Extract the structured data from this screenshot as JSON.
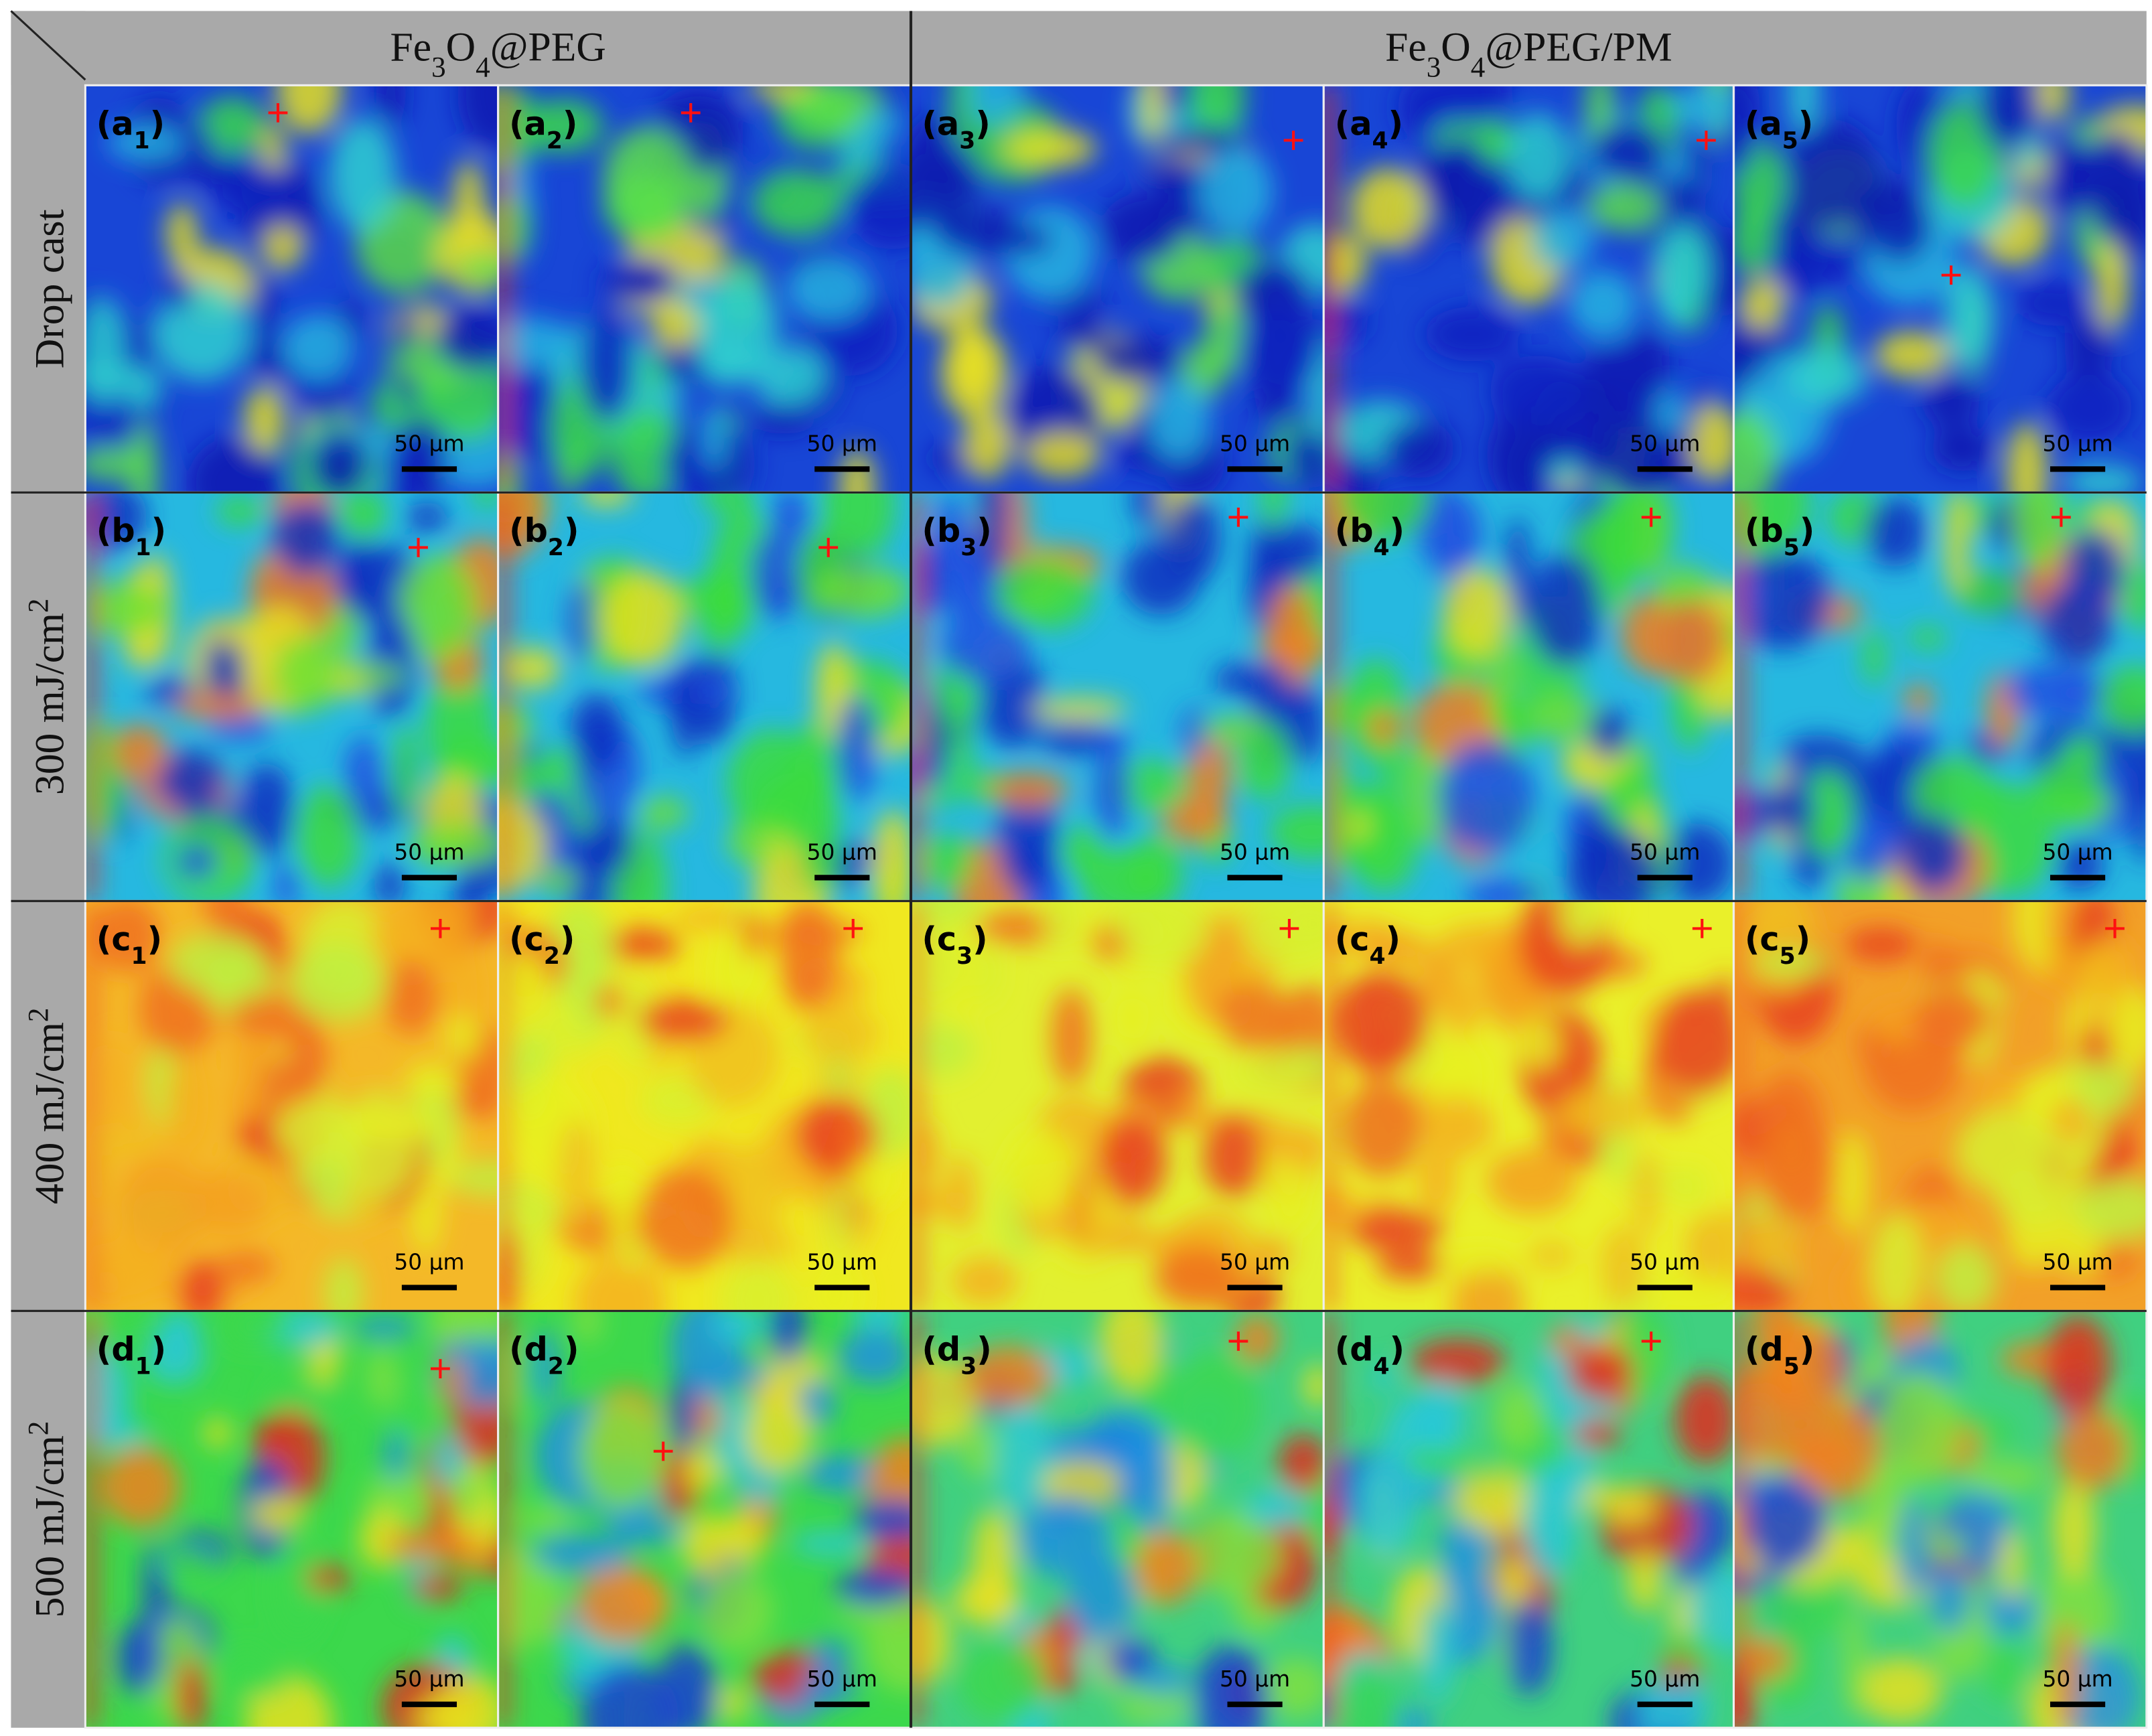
{
  "header": {
    "groups": [
      {
        "title_parts": [
          "Fe",
          "3",
          "O",
          "4",
          "@PEG"
        ]
      },
      {
        "title_parts": [
          "Fe",
          "3",
          "O",
          "4",
          "@PEG/PM"
        ]
      }
    ]
  },
  "rows": [
    {
      "label_parts": [
        "Drop cast"
      ],
      "panels": [
        {
          "label_parts": [
            "(a",
            "1",
            ")"
          ],
          "scale": "50 µm"
        },
        {
          "label_parts": [
            "(a",
            "2",
            ")"
          ],
          "scale": "50 µm"
        },
        {
          "label_parts": [
            "(a",
            "3",
            ")"
          ],
          "scale": "50 µm"
        },
        {
          "label_parts": [
            "(a",
            "4",
            ")"
          ],
          "scale": "50 µm"
        },
        {
          "label_parts": [
            "(a",
            "5",
            ")"
          ],
          "scale": "50 µm"
        }
      ]
    },
    {
      "label_parts": [
        "300 mJ/cm",
        "2"
      ],
      "panels": [
        {
          "label_parts": [
            "(b",
            "1",
            ")"
          ],
          "scale": "50 µm"
        },
        {
          "label_parts": [
            "(b",
            "2",
            ")"
          ],
          "scale": "50 µm"
        },
        {
          "label_parts": [
            "(b",
            "3",
            ")"
          ],
          "scale": "50 µm"
        },
        {
          "label_parts": [
            "(b",
            "4",
            ")"
          ],
          "scale": "50 µm"
        },
        {
          "label_parts": [
            "(b",
            "5",
            ")"
          ],
          "scale": "50 µm"
        }
      ]
    },
    {
      "label_parts": [
        "400 mJ/cm",
        "2"
      ],
      "panels": [
        {
          "label_parts": [
            "(c",
            "1",
            ")"
          ],
          "scale": "50 µm"
        },
        {
          "label_parts": [
            "(c",
            "2",
            ")"
          ],
          "scale": "50 µm"
        },
        {
          "label_parts": [
            "(c",
            "3",
            ")"
          ],
          "scale": "50 µm"
        },
        {
          "label_parts": [
            "(c",
            "4",
            ")"
          ],
          "scale": "50 µm"
        },
        {
          "label_parts": [
            "(c",
            "5",
            ")"
          ],
          "scale": "50 µm"
        }
      ]
    },
    {
      "label_parts": [
        "500 mJ/cm",
        "2"
      ],
      "panels": [
        {
          "label_parts": [
            "(d",
            "1",
            ")"
          ],
          "scale": "50 µm"
        },
        {
          "label_parts": [
            "(d",
            "2",
            ")"
          ],
          "scale": "50 µm"
        },
        {
          "label_parts": [
            "(d",
            "3",
            ")"
          ],
          "scale": "50 µm"
        },
        {
          "label_parts": [
            "(d",
            "4",
            ")"
          ],
          "scale": "50 µm"
        },
        {
          "label_parts": [
            "(d",
            "5",
            ")"
          ],
          "scale": "50 µm"
        }
      ]
    }
  ]
}
